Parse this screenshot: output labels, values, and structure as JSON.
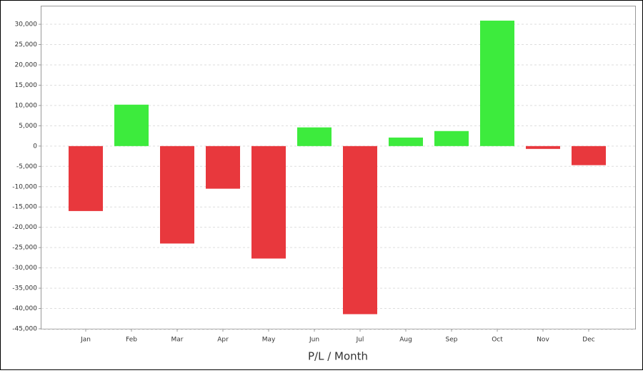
{
  "chart_data": {
    "type": "bar",
    "xlabel": "P/L / Month",
    "categories": [
      "Jan",
      "Feb",
      "Mar",
      "Apr",
      "May",
      "Jun",
      "Jul",
      "Aug",
      "Sep",
      "Oct",
      "Nov",
      "Dec"
    ],
    "values": [
      -16000,
      10200,
      -24000,
      -10500,
      -27700,
      4600,
      -41400,
      2100,
      3700,
      30900,
      -700,
      -4700
    ],
    "positive_color": "#3deb3d",
    "negative_color": "#e8383d",
    "ylim": [
      -45000,
      34400
    ],
    "yticks": [
      {
        "value": -45000,
        "label": "-45,000"
      },
      {
        "value": -40000,
        "label": "-40,000"
      },
      {
        "value": -35000,
        "label": "-35,000"
      },
      {
        "value": -30000,
        "label": "-30,000"
      },
      {
        "value": -25000,
        "label": "-25,000"
      },
      {
        "value": -20000,
        "label": "-20,000"
      },
      {
        "value": -15000,
        "label": "-15,000"
      },
      {
        "value": -10000,
        "label": "-10,000"
      },
      {
        "value": -5000,
        "label": "-5,000"
      },
      0,
      {
        "value": 5000,
        "label": "5,000"
      },
      {
        "value": 10000,
        "label": "10,000"
      },
      {
        "value": 15000,
        "label": "15,000"
      },
      {
        "value": 20000,
        "label": "20,000"
      },
      {
        "value": 25000,
        "label": "25,000"
      },
      {
        "value": 30000,
        "label": "30,000"
      }
    ],
    "grid": true
  }
}
